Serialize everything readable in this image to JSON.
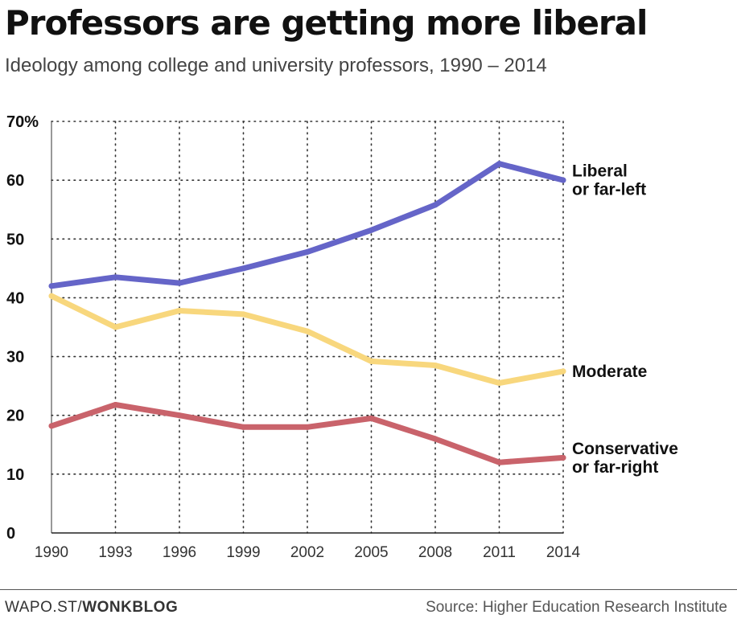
{
  "header": {
    "title": "Professors are getting more liberal",
    "subtitle": "Ideology among college and university professors, 1990 – 2014"
  },
  "footer": {
    "credit_prefix": "WAPO.ST/",
    "credit_brand": "WONKBLOG",
    "source": "Source: Higher Education Research Institute"
  },
  "chart_data": {
    "type": "line",
    "x": [
      "1990",
      "1993",
      "1996",
      "1999",
      "2002",
      "2005",
      "2008",
      "2011",
      "2014"
    ],
    "ylim": [
      0,
      70
    ],
    "y_ticks": [
      "0",
      "10",
      "20",
      "30",
      "40",
      "50",
      "60",
      "70%"
    ],
    "grid": true,
    "series": [
      {
        "name": "Liberal or far-left",
        "label_lines": [
          "Liberal",
          "or far-left"
        ],
        "color": "#6565c8",
        "values": [
          42,
          43.5,
          42.5,
          45,
          47.8,
          51.5,
          55.8,
          62.8,
          60
        ]
      },
      {
        "name": "Moderate",
        "label_lines": [
          "Moderate"
        ],
        "color": "#f8d77d",
        "values": [
          40.3,
          35,
          37.8,
          37.2,
          34.3,
          29.2,
          28.5,
          25.5,
          27.5
        ]
      },
      {
        "name": "Conservative or far-right",
        "label_lines": [
          "Conservative",
          "or far-right"
        ],
        "color": "#c9636b",
        "values": [
          18.2,
          21.8,
          20,
          18,
          18,
          19.5,
          16,
          12,
          12.8
        ]
      }
    ]
  }
}
